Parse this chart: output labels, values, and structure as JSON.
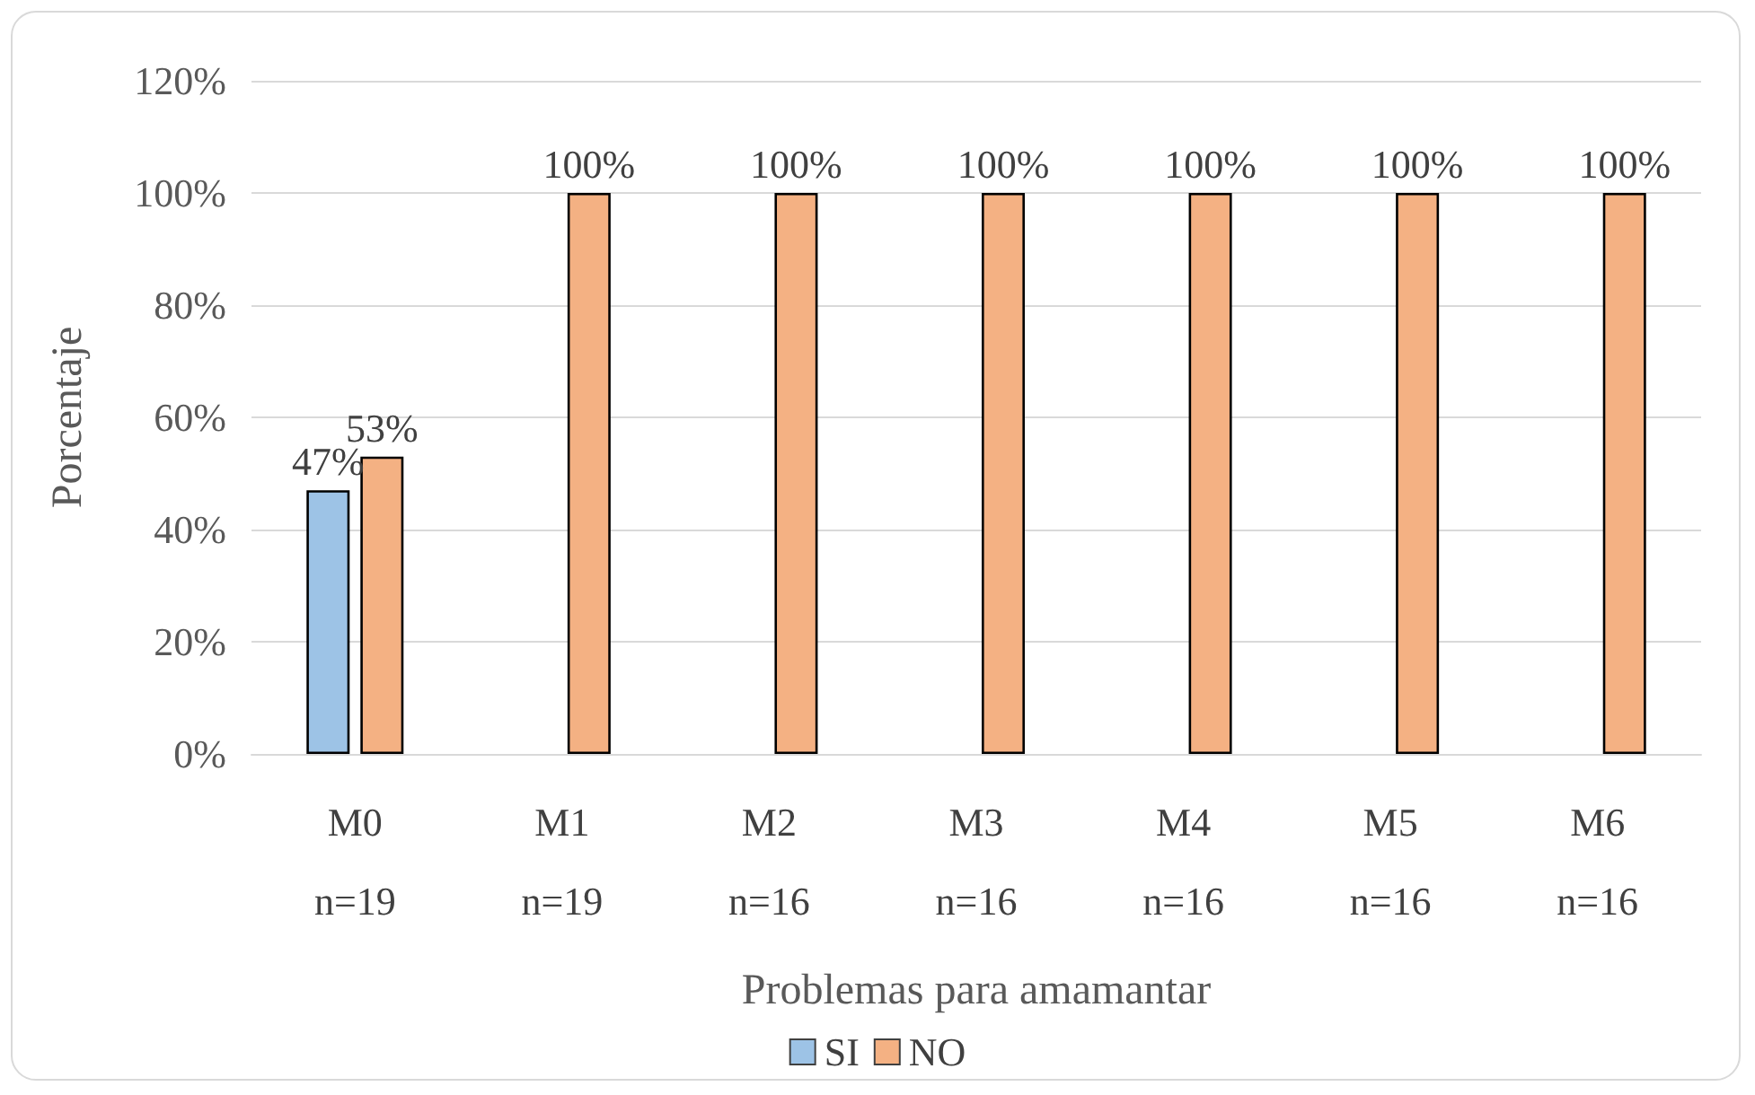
{
  "chart_data": {
    "type": "bar",
    "xlabel": "Problemas para amamantar",
    "ylabel": "Porcentaje",
    "categories": [
      "M0\nn=19",
      "M1\nn=19",
      "M2\nn=16",
      "M3\nn=16",
      "M4\nn=16",
      "M5\nn=16",
      "M6\nn=16"
    ],
    "series": [
      {
        "name": "SI",
        "color": "#9dc3e6",
        "values": [
          47,
          0,
          0,
          0,
          0,
          0,
          0
        ],
        "value_labels": [
          "47%",
          null,
          null,
          null,
          null,
          null,
          null
        ]
      },
      {
        "name": "NO",
        "color": "#f4b183",
        "values": [
          53,
          100,
          100,
          100,
          100,
          100,
          100
        ],
        "value_labels": [
          "53%",
          "100%",
          "100%",
          "100%",
          "100%",
          "100%",
          "100%"
        ]
      }
    ],
    "ylim": [
      0,
      120
    ],
    "yticks": [
      {
        "value": 0,
        "label": "0%"
      },
      {
        "value": 20,
        "label": "20%"
      },
      {
        "value": 40,
        "label": "40%"
      },
      {
        "value": 60,
        "label": "60%"
      },
      {
        "value": 80,
        "label": "80%"
      },
      {
        "value": 100,
        "label": "100%"
      },
      {
        "value": 120,
        "label": "120%"
      }
    ],
    "grid": "y",
    "legend": "bottom"
  }
}
